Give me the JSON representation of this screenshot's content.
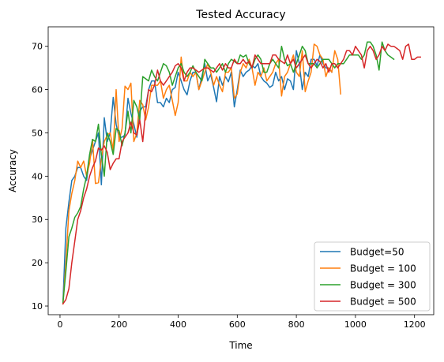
{
  "chart_data": {
    "type": "line",
    "title": "Tested Accuracy",
    "xlabel": "Time",
    "ylabel": "Accuracy",
    "xlim": [
      -40,
      1265
    ],
    "ylim": [
      8,
      74.5
    ],
    "xticks": [
      0,
      200,
      400,
      600,
      800,
      1000,
      1200
    ],
    "yticks": [
      10,
      20,
      30,
      40,
      50,
      60,
      70
    ],
    "grid": false,
    "legend_position": "lower-right",
    "series": [
      {
        "name": "Budget=50",
        "color": "#1f77b4",
        "x": [
          10,
          20,
          30,
          40,
          50,
          60,
          70,
          80,
          90,
          100,
          110,
          120,
          130,
          140,
          150,
          160,
          170,
          180,
          190,
          200,
          210,
          220,
          230,
          240,
          250,
          260,
          270,
          280,
          290,
          300,
          310,
          320,
          330,
          340,
          350,
          360,
          370,
          380,
          390,
          400,
          410,
          420,
          430,
          440,
          450,
          460,
          470,
          480,
          490,
          500,
          510,
          520,
          530,
          540,
          550,
          560,
          570,
          580,
          590,
          600,
          610,
          620,
          630,
          640,
          650,
          660,
          670,
          680,
          690,
          700,
          710,
          720,
          730,
          740,
          750,
          760,
          770,
          780,
          790,
          800,
          810,
          820,
          830,
          840,
          850,
          860,
          870,
          880,
          890,
          900,
          910,
          920
        ],
        "y": [
          10.8,
          28.0,
          34.0,
          39.0,
          40.0,
          42.0,
          42.0,
          40.0,
          39.0,
          44.0,
          46.0,
          48.0,
          50.0,
          38.0,
          53.5,
          48.0,
          50.0,
          58.2,
          52.0,
          49.0,
          49.0,
          49.5,
          58.0,
          54.5,
          52.0,
          49.0,
          55.0,
          56.0,
          56.0,
          60.0,
          62.0,
          62.0,
          57.0,
          57.0,
          56.0,
          58.0,
          57.0,
          60.0,
          60.5,
          64.0,
          62.0,
          60.0,
          58.8,
          62.0,
          64.0,
          64.0,
          60.0,
          63.0,
          66.0,
          62.0,
          63.5,
          60.5,
          57.2,
          63.0,
          61.0,
          63.0,
          61.8,
          64.0,
          56.0,
          60.0,
          64.5,
          63.0,
          64.0,
          64.5,
          65.5,
          65.0,
          66.0,
          63.0,
          62.0,
          61.5,
          60.5,
          61.0,
          64.0,
          62.0,
          63.0,
          60.0,
          62.5,
          62.0,
          60.0,
          69.0,
          66.0,
          60.0,
          64.0,
          63.0,
          67.0,
          67.0,
          65.5,
          68.0,
          66.0,
          65.0,
          65.0,
          64.0
        ]
      },
      {
        "name": "Budget = 100",
        "color": "#ff7f0e",
        "x": [
          10,
          20,
          30,
          40,
          50,
          60,
          70,
          80,
          90,
          100,
          110,
          120,
          130,
          140,
          150,
          160,
          170,
          180,
          190,
          200,
          210,
          220,
          230,
          240,
          250,
          260,
          270,
          280,
          290,
          300,
          310,
          320,
          330,
          340,
          350,
          360,
          370,
          380,
          390,
          400,
          410,
          420,
          430,
          440,
          450,
          460,
          470,
          480,
          490,
          500,
          510,
          520,
          530,
          540,
          550,
          560,
          570,
          580,
          590,
          600,
          610,
          620,
          630,
          640,
          650,
          660,
          670,
          680,
          690,
          700,
          710,
          720,
          730,
          740,
          750,
          760,
          770,
          780,
          790,
          800,
          810,
          820,
          830,
          840,
          850,
          860,
          870,
          880,
          890,
          900,
          910,
          920,
          930,
          940,
          950
        ],
        "y": [
          10.5,
          20.0,
          32.0,
          36.0,
          39.0,
          43.5,
          42.0,
          43.5,
          40.0,
          43.0,
          48.5,
          38.3,
          38.5,
          44.0,
          48.0,
          49.5,
          50.0,
          46.0,
          60.0,
          48.0,
          51.0,
          60.8,
          60.0,
          61.5,
          48.0,
          50.0,
          57.5,
          56.5,
          53.0,
          56.0,
          61.0,
          61.0,
          61.0,
          62.0,
          58.0,
          60.0,
          61.0,
          57.5,
          54.0,
          57.0,
          67.5,
          62.0,
          62.0,
          64.0,
          63.0,
          64.0,
          60.0,
          62.0,
          64.0,
          66.0,
          64.0,
          61.0,
          63.0,
          61.0,
          59.5,
          64.0,
          64.0,
          65.0,
          58.0,
          59.0,
          64.0,
          66.0,
          65.0,
          67.0,
          65.0,
          61.0,
          64.0,
          63.0,
          65.0,
          62.0,
          63.0,
          64.0,
          66.0,
          67.0,
          58.5,
          63.0,
          64.0,
          66.0,
          68.0,
          64.0,
          63.0,
          69.0,
          59.5,
          62.0,
          64.0,
          70.5,
          70.0,
          68.0,
          67.0,
          63.0,
          65.0,
          64.0,
          69.0,
          67.0,
          59.0
        ]
      },
      {
        "name": "Budget = 300",
        "color": "#2ca02c",
        "x": [
          10,
          20,
          30,
          40,
          50,
          60,
          70,
          80,
          90,
          100,
          110,
          120,
          130,
          140,
          150,
          160,
          170,
          180,
          190,
          200,
          210,
          220,
          230,
          240,
          250,
          260,
          270,
          280,
          290,
          300,
          310,
          320,
          330,
          340,
          350,
          360,
          370,
          380,
          390,
          400,
          410,
          420,
          430,
          440,
          450,
          460,
          470,
          480,
          490,
          500,
          510,
          520,
          530,
          540,
          550,
          560,
          570,
          580,
          590,
          600,
          610,
          620,
          630,
          640,
          650,
          660,
          670,
          680,
          690,
          700,
          710,
          720,
          730,
          740,
          750,
          760,
          770,
          780,
          790,
          800,
          810,
          820,
          830,
          840,
          850,
          860,
          870,
          880,
          890,
          900,
          910,
          920,
          930,
          940,
          950,
          960,
          970,
          980,
          990,
          1000,
          1010,
          1020,
          1030,
          1040,
          1050,
          1060,
          1070,
          1080,
          1090,
          1100,
          1110,
          1120,
          1130
        ],
        "y": [
          10.8,
          18.0,
          26.0,
          28.0,
          30.5,
          31.5,
          33.0,
          37.0,
          40.0,
          45.0,
          48.5,
          48.0,
          52.0,
          45.0,
          40.0,
          50.0,
          48.0,
          45.0,
          51.0,
          50.5,
          47.0,
          50.0,
          55.0,
          50.0,
          57.5,
          56.0,
          53.0,
          63.0,
          62.5,
          62.0,
          64.5,
          63.0,
          62.0,
          64.0,
          66.0,
          65.5,
          64.0,
          61.0,
          63.0,
          65.0,
          66.0,
          64.0,
          63.0,
          64.0,
          65.5,
          64.0,
          63.0,
          62.0,
          67.0,
          66.0,
          65.0,
          65.0,
          64.0,
          65.0,
          66.0,
          64.0,
          66.0,
          67.0,
          66.5,
          66.0,
          68.0,
          67.5,
          68.0,
          66.0,
          65.0,
          67.0,
          68.0,
          67.0,
          64.0,
          64.0,
          66.0,
          67.0,
          66.0,
          65.0,
          70.0,
          67.0,
          65.5,
          66.0,
          64.0,
          66.0,
          68.0,
          70.0,
          69.0,
          66.0,
          66.0,
          66.0,
          65.0,
          66.0,
          67.0,
          67.0,
          67.0,
          66.0,
          65.0,
          66.0,
          66.0,
          66.0,
          67.0,
          68.0,
          68.0,
          68.0,
          68.0,
          67.0,
          68.0,
          71.0,
          71.0,
          70.0,
          68.0,
          64.5,
          71.0,
          69.0,
          68.0,
          67.5,
          67.0
        ]
      },
      {
        "name": "Budget = 500",
        "color": "#d62728",
        "x": [
          10,
          20,
          30,
          40,
          50,
          60,
          70,
          80,
          90,
          100,
          110,
          120,
          130,
          140,
          150,
          160,
          170,
          180,
          190,
          200,
          210,
          220,
          230,
          240,
          250,
          260,
          270,
          280,
          290,
          300,
          310,
          320,
          330,
          340,
          350,
          360,
          370,
          380,
          390,
          400,
          410,
          420,
          430,
          440,
          450,
          460,
          470,
          480,
          490,
          500,
          510,
          520,
          530,
          540,
          550,
          560,
          570,
          580,
          590,
          600,
          610,
          620,
          630,
          640,
          650,
          660,
          670,
          680,
          690,
          700,
          710,
          720,
          730,
          740,
          750,
          760,
          770,
          780,
          790,
          800,
          810,
          820,
          830,
          840,
          850,
          860,
          870,
          880,
          890,
          900,
          910,
          920,
          930,
          940,
          950,
          960,
          970,
          980,
          990,
          1000,
          1010,
          1020,
          1030,
          1040,
          1050,
          1060,
          1070,
          1080,
          1090,
          1100,
          1110,
          1120,
          1130,
          1140,
          1150,
          1160,
          1170,
          1180,
          1190,
          1200,
          1210,
          1220
        ],
        "y": [
          10.5,
          11.5,
          14.0,
          20.0,
          25.0,
          30.0,
          32.0,
          35.0,
          37.0,
          40.0,
          42.0,
          43.5,
          46.5,
          46.0,
          47.0,
          45.5,
          41.5,
          43.0,
          44.0,
          44.0,
          48.0,
          49.0,
          50.0,
          52.5,
          50.0,
          49.5,
          53.0,
          48.0,
          55.0,
          60.0,
          59.5,
          61.0,
          64.5,
          62.0,
          61.0,
          62.0,
          63.0,
          64.0,
          65.5,
          66.0,
          65.0,
          62.0,
          64.0,
          65.0,
          65.0,
          64.5,
          64.0,
          64.5,
          65.0,
          65.0,
          64.5,
          64.0,
          65.0,
          66.0,
          64.5,
          66.0,
          65.0,
          65.0,
          67.0,
          66.0,
          66.0,
          67.0,
          66.0,
          66.5,
          65.0,
          68.0,
          67.0,
          66.0,
          66.0,
          66.0,
          66.0,
          68.0,
          68.0,
          67.0,
          66.5,
          66.0,
          68.0,
          66.0,
          67.0,
          65.0,
          66.0,
          67.0,
          68.0,
          66.0,
          65.0,
          66.0,
          67.0,
          66.5,
          65.0,
          66.0,
          64.0,
          66.0,
          66.0,
          65.0,
          66.0,
          67.0,
          69.0,
          69.0,
          68.0,
          70.0,
          69.0,
          68.0,
          65.0,
          69.0,
          70.0,
          69.0,
          67.0,
          68.0,
          70.0,
          69.0,
          70.5,
          70.0,
          70.0,
          69.5,
          69.0,
          67.0,
          70.0,
          70.5,
          67.0,
          67.0,
          67.5,
          67.5
        ]
      }
    ]
  }
}
